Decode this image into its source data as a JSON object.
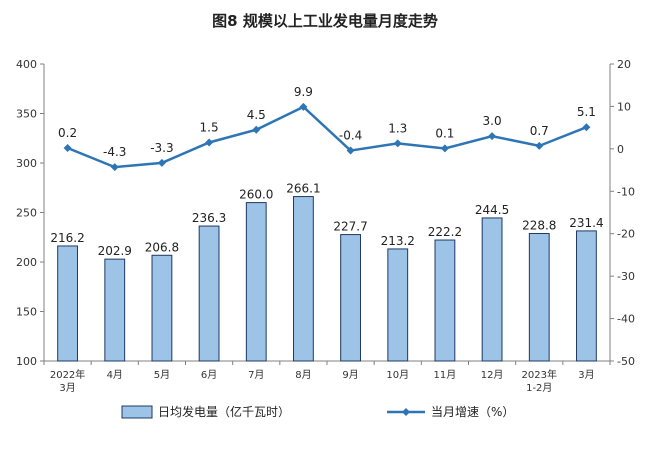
{
  "chart_data": {
    "type": "bar",
    "title": "图8  规模以上工业发电量月度走势",
    "categories": [
      [
        "2022年",
        "3月"
      ],
      [
        "4月"
      ],
      [
        "5月"
      ],
      [
        "6月"
      ],
      [
        "7月"
      ],
      [
        "8月"
      ],
      [
        "9月"
      ],
      [
        "10月"
      ],
      [
        "11月"
      ],
      [
        "12月"
      ],
      [
        "2023年",
        "1-2月"
      ],
      [
        "3月"
      ]
    ],
    "series": [
      {
        "name": "日均发电量（亿千瓦时）",
        "type": "bar",
        "axis": "left",
        "color": "#9DC3E6",
        "stroke": "#1F3864",
        "values": [
          216.2,
          202.9,
          206.8,
          236.3,
          260.0,
          266.1,
          227.7,
          213.2,
          222.2,
          244.5,
          228.8,
          231.4
        ],
        "labels": [
          "216.2",
          "202.9",
          "206.8",
          "236.3",
          "260.0",
          "266.1",
          "227.7",
          "213.2",
          "222.2",
          "244.5",
          "228.8",
          "231.4"
        ]
      },
      {
        "name": "当月增速（%）",
        "type": "line",
        "axis": "right",
        "color": "#2E75B6",
        "values": [
          0.2,
          -4.3,
          -3.3,
          1.5,
          4.5,
          9.9,
          -0.4,
          1.3,
          0.1,
          3.0,
          0.7,
          5.1
        ],
        "labels": [
          "0.2",
          "-4.3",
          "-3.3",
          "1.5",
          "4.5",
          "9.9",
          "-0.4",
          "1.3",
          "0.1",
          "3.0",
          "0.7",
          "5.1"
        ]
      }
    ],
    "y_left": {
      "lim": [
        100,
        400
      ],
      "ticks": [
        100,
        150,
        200,
        250,
        300,
        350,
        400
      ]
    },
    "y_right": {
      "lim": [
        -50,
        20
      ],
      "ticks": [
        -50,
        -40,
        -30,
        -20,
        -10,
        0,
        10,
        20
      ]
    },
    "grid": false,
    "legend": "bottom"
  }
}
